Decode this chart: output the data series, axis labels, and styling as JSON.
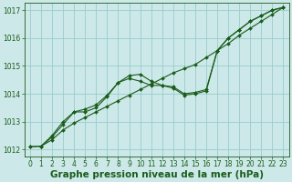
{
  "xlabel": "Graphe pression niveau de la mer (hPa)",
  "bg_color": "#cce8e8",
  "grid_color": "#99cccc",
  "line_color": "#1a5c1a",
  "text_color": "#1a5c1a",
  "xlim": [
    -0.5,
    23.5
  ],
  "ylim": [
    1011.75,
    1017.25
  ],
  "yticks": [
    1012,
    1013,
    1014,
    1015,
    1016,
    1017
  ],
  "xticks": [
    0,
    1,
    2,
    3,
    4,
    5,
    6,
    7,
    8,
    9,
    10,
    11,
    12,
    13,
    14,
    15,
    16,
    17,
    18,
    19,
    20,
    21,
    22,
    23
  ],
  "line1_x": [
    0,
    1,
    2,
    3,
    4,
    5,
    6,
    7,
    8,
    9,
    10,
    11,
    12,
    13,
    14,
    15,
    16,
    17,
    18,
    19,
    20,
    21,
    22,
    23
  ],
  "line1_y": [
    1012.1,
    1012.12,
    1012.35,
    1012.7,
    1012.95,
    1013.15,
    1013.35,
    1013.55,
    1013.75,
    1013.95,
    1014.15,
    1014.35,
    1014.55,
    1014.75,
    1014.9,
    1015.05,
    1015.3,
    1015.55,
    1015.8,
    1016.1,
    1016.35,
    1016.6,
    1016.85,
    1017.1
  ],
  "line2_x": [
    0,
    1,
    2,
    3,
    4,
    5,
    6,
    7,
    8,
    9,
    10,
    11,
    12,
    13,
    14,
    15,
    16,
    17,
    18,
    19,
    20,
    21,
    22,
    23
  ],
  "line2_y": [
    1012.1,
    1012.12,
    1012.5,
    1013.0,
    1013.35,
    1013.45,
    1013.6,
    1013.95,
    1014.4,
    1014.55,
    1014.45,
    1014.3,
    1014.3,
    1014.25,
    1014.0,
    1014.05,
    1014.15,
    1015.55,
    1016.0,
    1016.3,
    1016.6,
    1016.8,
    1017.0,
    1017.1
  ],
  "line3_x": [
    1,
    2,
    3,
    4,
    5,
    6,
    7,
    8,
    9,
    10,
    11,
    12,
    13,
    14,
    15,
    16,
    17,
    18,
    19,
    20,
    21,
    22,
    23
  ],
  "line3_y": [
    1012.12,
    1012.45,
    1012.9,
    1013.35,
    1013.35,
    1013.5,
    1013.9,
    1014.4,
    1014.65,
    1014.7,
    1014.45,
    1014.3,
    1014.2,
    1013.95,
    1014.0,
    1014.1,
    1015.55,
    1016.0,
    1016.3,
    1016.6,
    1016.8,
    1017.0,
    1017.1
  ],
  "tick_fontsize": 5.5,
  "xlabel_fontsize": 7.5,
  "marker_size": 2.0,
  "line_width": 0.8
}
